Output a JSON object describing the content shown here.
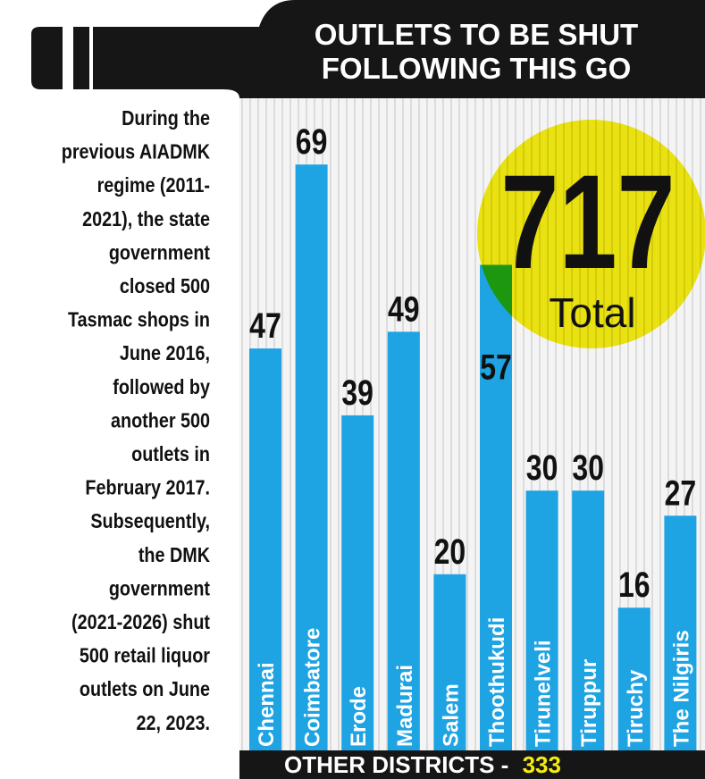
{
  "chart_data": {
    "type": "bar",
    "title": [
      "OUTLETS TO BE SHUT",
      "FOLLOWING THIS GO"
    ],
    "categories": [
      "Chennai",
      "Coimbatore",
      "Erode",
      "Madurai",
      "Salem",
      "Thoothukudi",
      "Tirunelveli",
      "Tiruppur",
      "Tiruchy",
      "The Nilgiris"
    ],
    "values": [
      47,
      69,
      39,
      49,
      20,
      57,
      30,
      30,
      16,
      27
    ],
    "color": "#1ea3e3",
    "total_value": 717,
    "total_label": "Total",
    "footer_label": "OTHER DISTRICTS -",
    "footer_value": 333,
    "note_lines": [
      "During the",
      "previous AIADMK",
      "regime (2011-",
      "2021), the state",
      "government",
      "closed 500",
      "Tasmac shops in",
      "June 2016,",
      "followed by",
      "another 500",
      "outlets in",
      "February 2017.",
      "Subsequently,",
      "the DMK",
      "government",
      "(2021-2026) shut",
      "500 retail liquor",
      "outlets on June",
      "22, 2023."
    ]
  }
}
